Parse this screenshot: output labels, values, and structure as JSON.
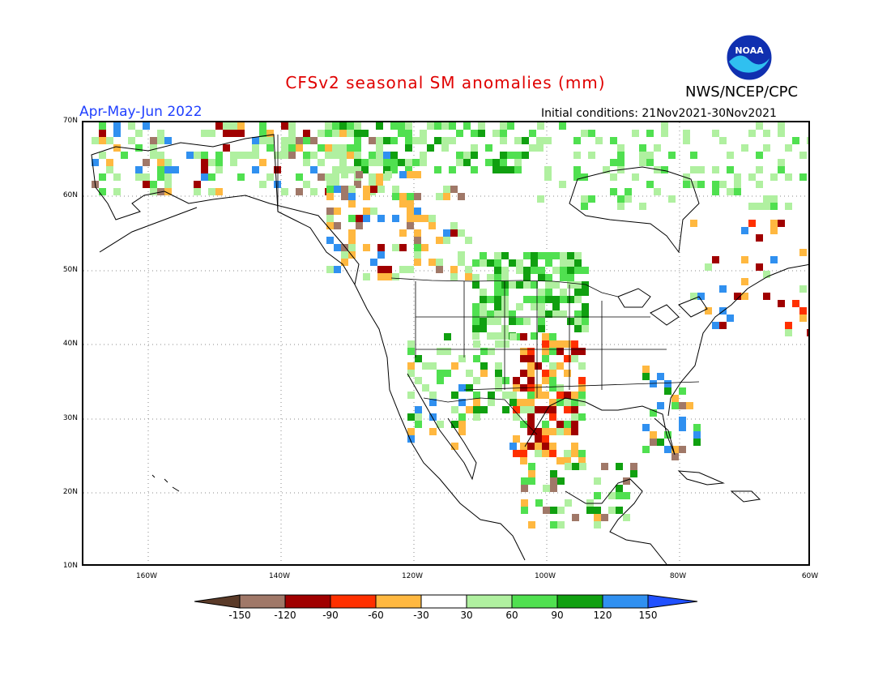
{
  "title": "CFSv2 seasonal SM anomalies (mm)",
  "season": "Apr-May-Jun 2022",
  "initial_conditions": "Initial conditions: 21Nov2021-30Nov2021",
  "agency": "NWS/NCEP/CPC",
  "logo_text": "NOAA",
  "lat_labels": [
    "70N",
    "60N",
    "50N",
    "40N",
    "30N",
    "20N",
    "10N"
  ],
  "lon_labels": [
    "160W",
    "140W",
    "120W",
    "100W",
    "80W",
    "60W"
  ],
  "colorbar": {
    "labels": [
      "-150",
      "-120",
      "-90",
      "-60",
      "-30",
      "30",
      "60",
      "90",
      "120",
      "150"
    ],
    "colors": [
      "#5a3a28",
      "#a07868",
      "#a00000",
      "#ff3000",
      "#ffb840",
      "#ffffff",
      "#b0f0a0",
      "#50e050",
      "#10a010",
      "#3090f0",
      "#2050ff"
    ]
  },
  "icons": {
    "logo": "noaa-logo-icon"
  }
}
